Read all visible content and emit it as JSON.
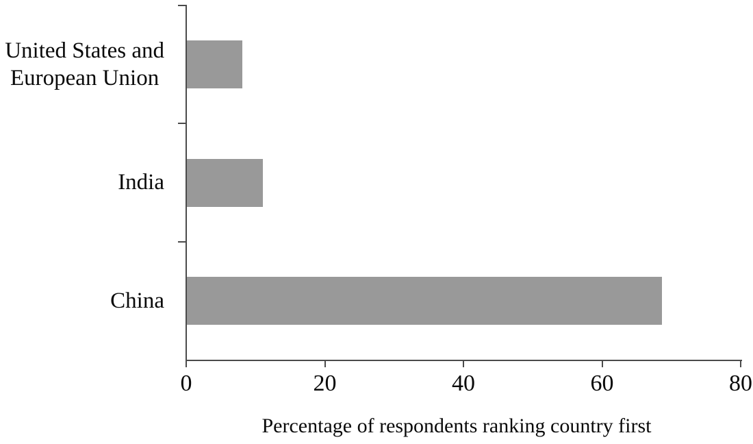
{
  "chart_data": {
    "type": "bar",
    "orientation": "horizontal",
    "title": "",
    "xlabel": "Percentage of respondents ranking country first",
    "ylabel": "",
    "categories": [
      "United States and\nEuropean Union",
      "India",
      "China"
    ],
    "values": [
      8,
      11,
      68.5
    ],
    "xlim": [
      0,
      80
    ],
    "xticks": [
      0,
      20,
      40,
      60,
      80
    ],
    "xtick_labels": [
      "0",
      "20",
      "40",
      "60",
      "80"
    ],
    "grid": false,
    "legend": false,
    "bar_color": "#999999",
    "axis_color": "#4a4a4a",
    "text_color": "#0a0a0a",
    "background_color": "#ffffff"
  }
}
